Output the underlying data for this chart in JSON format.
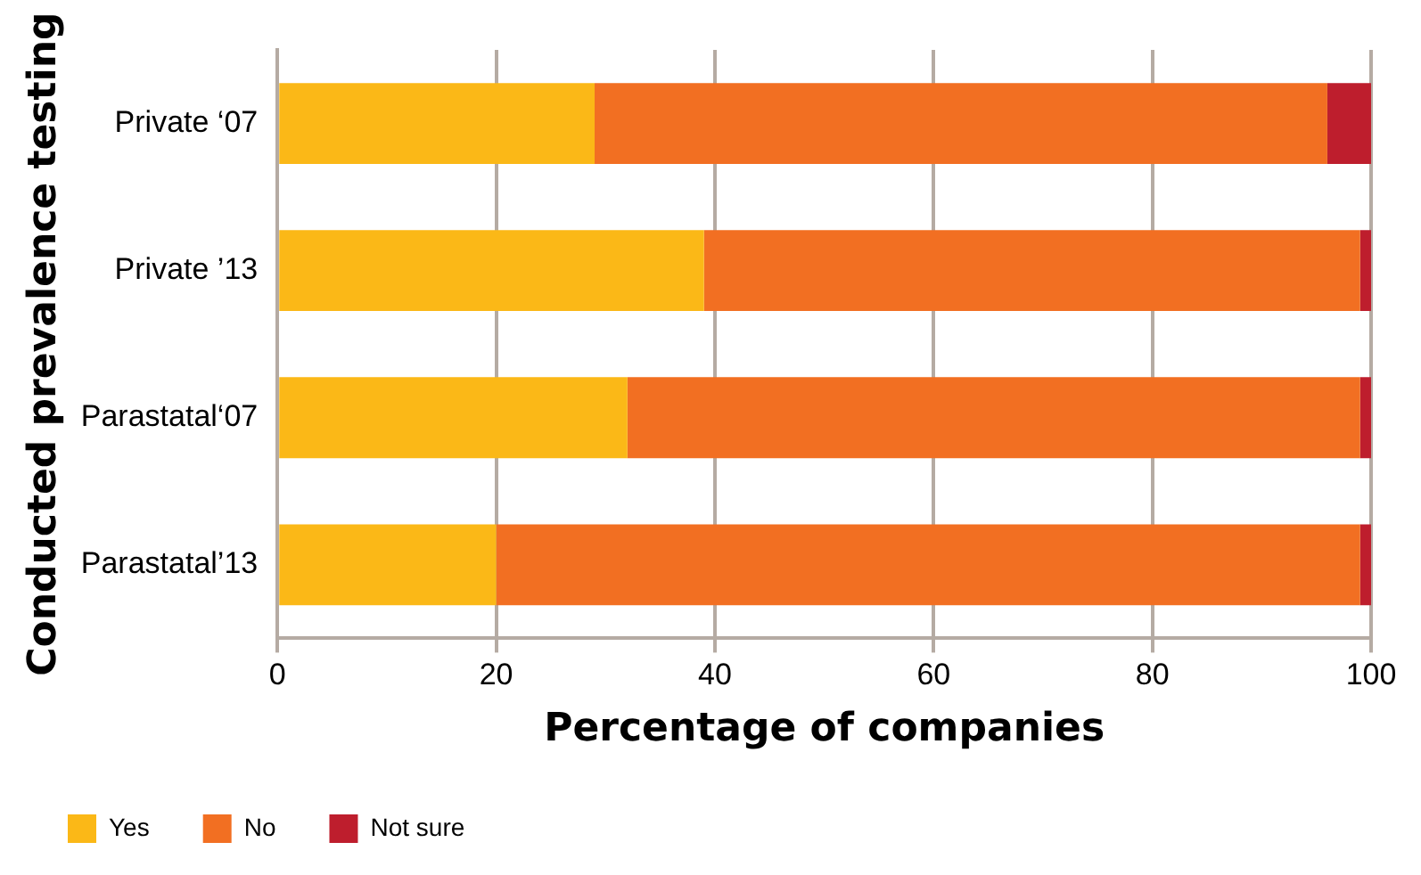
{
  "chart_data": {
    "type": "bar",
    "orientation": "horizontal",
    "stacked": true,
    "xlabel": "Percentage of companies",
    "ylabel": "Conducted prevalence testing",
    "categories": [
      "Private ‘07",
      "Private ’13",
      "Parastatal‘07",
      "Parastatal’13"
    ],
    "series": [
      {
        "name": "Yes",
        "color": "#fbb817",
        "values": [
          29,
          39,
          32,
          20
        ]
      },
      {
        "name": "No",
        "color": "#f26f22",
        "values": [
          67,
          60,
          67,
          79
        ]
      },
      {
        "name": "Not sure",
        "color": "#be1e2d",
        "values": [
          4,
          1,
          1,
          1
        ]
      }
    ],
    "xlim": [
      0,
      100
    ],
    "xticks": [
      0,
      20,
      40,
      60,
      80,
      100
    ],
    "grid": "x",
    "legend": "bottom left"
  }
}
